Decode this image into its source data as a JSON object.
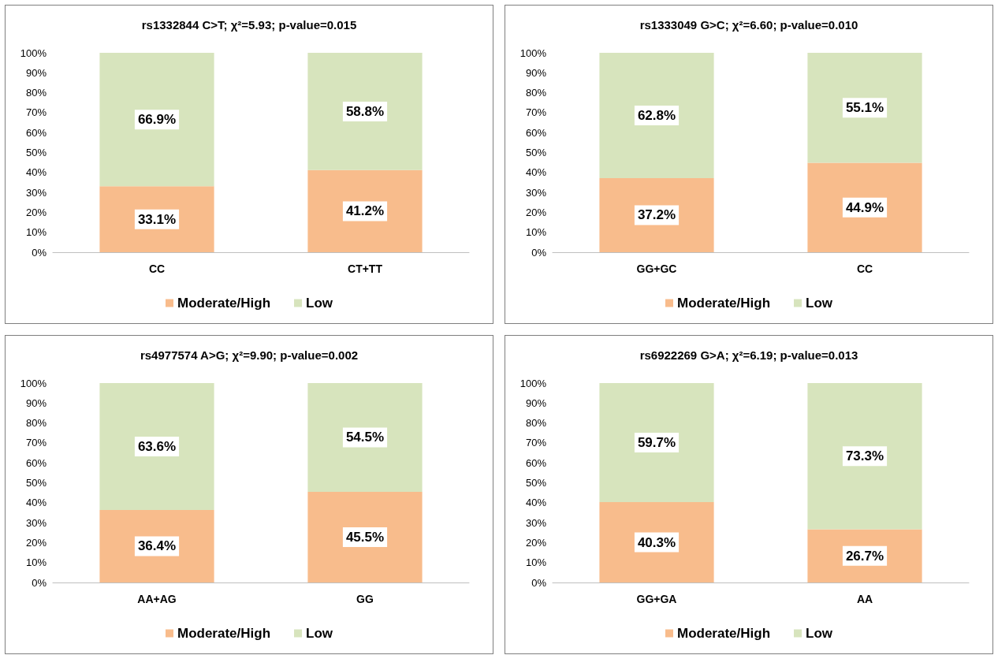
{
  "chart_data": [
    {
      "type": "bar",
      "stacked": true,
      "title": "rs1332844 C>T; χ²=5.93; p-value=0.015",
      "categories": [
        "CC",
        "CT+TT"
      ],
      "ylim": [
        0,
        100
      ],
      "yticks": [
        {
          "value": 0,
          "label": "0%"
        },
        {
          "value": 10,
          "label": "10%"
        },
        {
          "value": 20,
          "label": "20%"
        },
        {
          "value": 30,
          "label": "30%"
        },
        {
          "value": 40,
          "label": "40%"
        },
        {
          "value": 50,
          "label": "50%"
        },
        {
          "value": 60,
          "label": "60%"
        },
        {
          "value": 70,
          "label": "70%"
        },
        {
          "value": 80,
          "label": "80%"
        },
        {
          "value": 90,
          "label": "90%"
        },
        {
          "value": 100,
          "label": "100%"
        }
      ],
      "grid": false,
      "legend": "bottom",
      "series": [
        {
          "name": "Moderate/High",
          "color": "#f8bc8c",
          "values": [
            33.1,
            41.2
          ],
          "value_labels": [
            "33.1%",
            "41.2%"
          ]
        },
        {
          "name": "Low",
          "color": "#d7e4bd",
          "values": [
            66.9,
            58.8
          ],
          "value_labels": [
            "66.9%",
            "58.8%"
          ]
        }
      ]
    },
    {
      "type": "bar",
      "stacked": true,
      "title": "rs1333049 G>C; χ²=6.60; p-value=0.010",
      "categories": [
        "GG+GC",
        "CC"
      ],
      "ylim": [
        0,
        100
      ],
      "yticks": [
        {
          "value": 0,
          "label": "0%"
        },
        {
          "value": 10,
          "label": "10%"
        },
        {
          "value": 20,
          "label": "20%"
        },
        {
          "value": 30,
          "label": "30%"
        },
        {
          "value": 40,
          "label": "40%"
        },
        {
          "value": 50,
          "label": "50%"
        },
        {
          "value": 60,
          "label": "60%"
        },
        {
          "value": 70,
          "label": "70%"
        },
        {
          "value": 80,
          "label": "80%"
        },
        {
          "value": 90,
          "label": "90%"
        },
        {
          "value": 100,
          "label": "100%"
        }
      ],
      "grid": false,
      "legend": "bottom",
      "series": [
        {
          "name": "Moderate/High",
          "color": "#f8bc8c",
          "values": [
            37.2,
            44.9
          ],
          "value_labels": [
            "37.2%",
            "44.9%"
          ]
        },
        {
          "name": "Low",
          "color": "#d7e4bd",
          "values": [
            62.8,
            55.1
          ],
          "value_labels": [
            "62.8%",
            "55.1%"
          ]
        }
      ]
    },
    {
      "type": "bar",
      "stacked": true,
      "title": "rs4977574 A>G; χ²=9.90; p-value=0.002",
      "categories": [
        "AA+AG",
        "GG"
      ],
      "ylim": [
        0,
        100
      ],
      "yticks": [
        {
          "value": 0,
          "label": "0%"
        },
        {
          "value": 10,
          "label": "10%"
        },
        {
          "value": 20,
          "label": "20%"
        },
        {
          "value": 30,
          "label": "30%"
        },
        {
          "value": 40,
          "label": "40%"
        },
        {
          "value": 50,
          "label": "50%"
        },
        {
          "value": 60,
          "label": "60%"
        },
        {
          "value": 70,
          "label": "70%"
        },
        {
          "value": 80,
          "label": "80%"
        },
        {
          "value": 90,
          "label": "90%"
        },
        {
          "value": 100,
          "label": "100%"
        }
      ],
      "grid": false,
      "legend": "bottom",
      "series": [
        {
          "name": "Moderate/High",
          "color": "#f8bc8c",
          "values": [
            36.4,
            45.5
          ],
          "value_labels": [
            "36.4%",
            "45.5%"
          ]
        },
        {
          "name": "Low",
          "color": "#d7e4bd",
          "values": [
            63.6,
            54.5
          ],
          "value_labels": [
            "63.6%",
            "54.5%"
          ]
        }
      ]
    },
    {
      "type": "bar",
      "stacked": true,
      "title": "rs6922269 G>A; χ²=6.19; p-value=0.013",
      "categories": [
        "GG+GA",
        "AA"
      ],
      "ylim": [
        0,
        100
      ],
      "yticks": [
        {
          "value": 0,
          "label": "0%"
        },
        {
          "value": 10,
          "label": "10%"
        },
        {
          "value": 20,
          "label": "20%"
        },
        {
          "value": 30,
          "label": "30%"
        },
        {
          "value": 40,
          "label": "40%"
        },
        {
          "value": 50,
          "label": "50%"
        },
        {
          "value": 60,
          "label": "60%"
        },
        {
          "value": 70,
          "label": "70%"
        },
        {
          "value": 80,
          "label": "80%"
        },
        {
          "value": 90,
          "label": "90%"
        },
        {
          "value": 100,
          "label": "100%"
        }
      ],
      "grid": false,
      "legend": "bottom",
      "series": [
        {
          "name": "Moderate/High",
          "color": "#f8bc8c",
          "values": [
            40.3,
            26.7
          ],
          "value_labels": [
            "40.3%",
            "26.7%"
          ]
        },
        {
          "name": "Low",
          "color": "#d7e4bd",
          "values": [
            59.7,
            73.3
          ],
          "value_labels": [
            "59.7%",
            "73.3%"
          ]
        }
      ]
    }
  ]
}
